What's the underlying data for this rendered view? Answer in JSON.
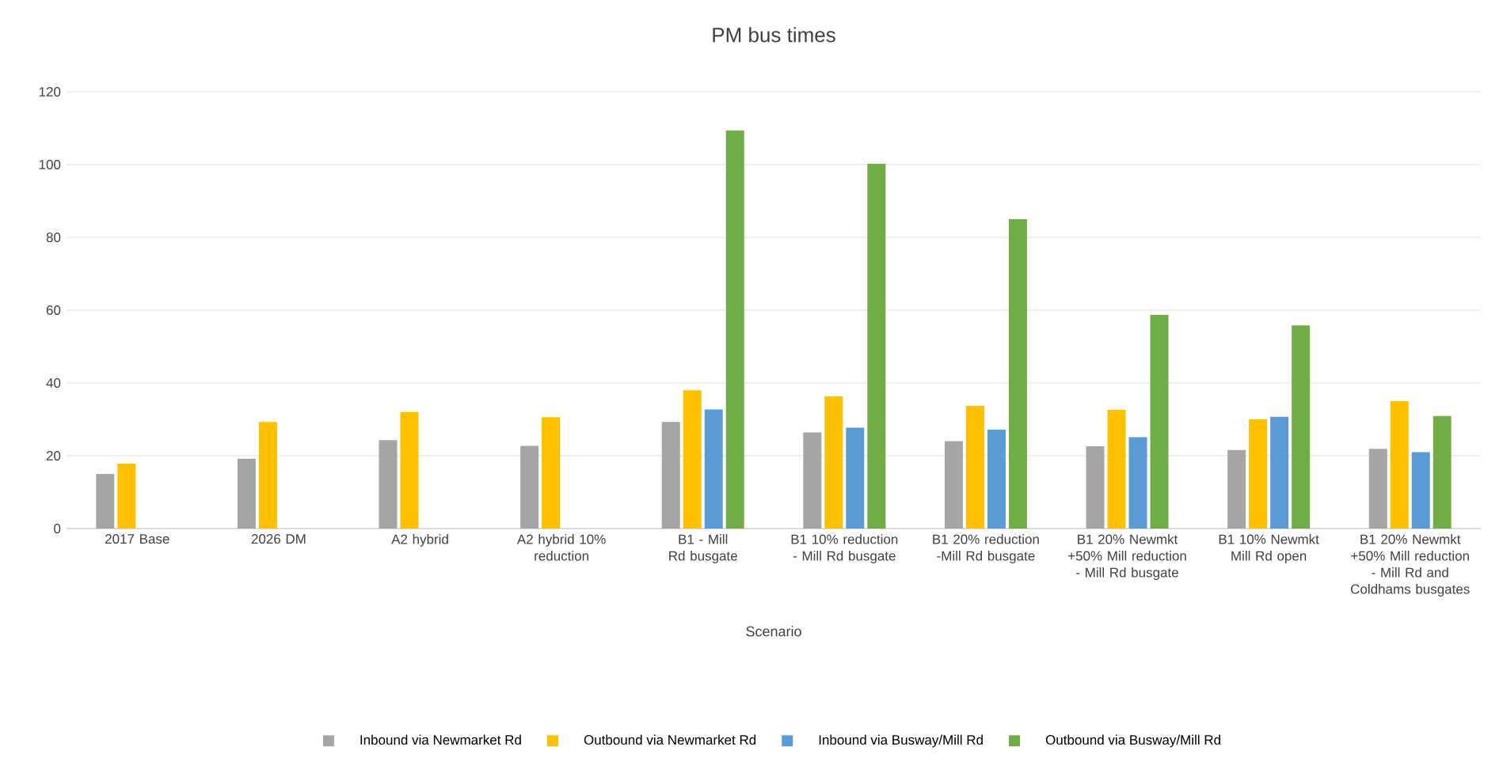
{
  "chart_data": {
    "type": "bar",
    "title": "PM bus times",
    "xlabel": "Scenario",
    "categories": [
      "2017 Base",
      "2026 DM",
      "A2 hybrid",
      "A2 hybrid 10% reduction",
      "B1 - Mill Rd busgate",
      "B1 10% reduction - Mill Rd busgate",
      "B1 20% reduction -Mill Rd busgate",
      "B1 20% Newmkt +50% Mill reduction - Mill Rd busgate",
      "B1 10% Newmkt Mill Rd open",
      "B1 20% Newmkt +50% Mill reduction - Mill Rd and Coldhams busgates"
    ],
    "series": [
      {
        "name": "Inbound via Newmarket Rd",
        "color": "#a5a5a5",
        "values": [
          15,
          19.2,
          24.3,
          22.7,
          29.3,
          26.4,
          24,
          22.6,
          21.6,
          21.9
        ]
      },
      {
        "name": "Outbound via Newmarket Rd",
        "color": "#ffc000",
        "values": [
          17.8,
          29.3,
          32,
          30.6,
          38,
          36.3,
          33.7,
          32.6,
          30,
          35
        ]
      },
      {
        "name": "Inbound via Busway/Mill Rd",
        "color": "#5b9bd5",
        "values": [
          null,
          null,
          null,
          null,
          32.7,
          27.7,
          27.2,
          25.1,
          30.7,
          21
        ]
      },
      {
        "name": "Outbound via Busway/Mill Rd",
        "color": "#70ad47",
        "values": [
          null,
          null,
          null,
          null,
          109.4,
          100.2,
          85,
          58.7,
          55.8,
          30.9
        ]
      }
    ],
    "ylim": [
      0,
      120
    ],
    "yticks": [
      0,
      20,
      40,
      60,
      80,
      100,
      120
    ],
    "grid": "y",
    "legend": "bottom"
  }
}
